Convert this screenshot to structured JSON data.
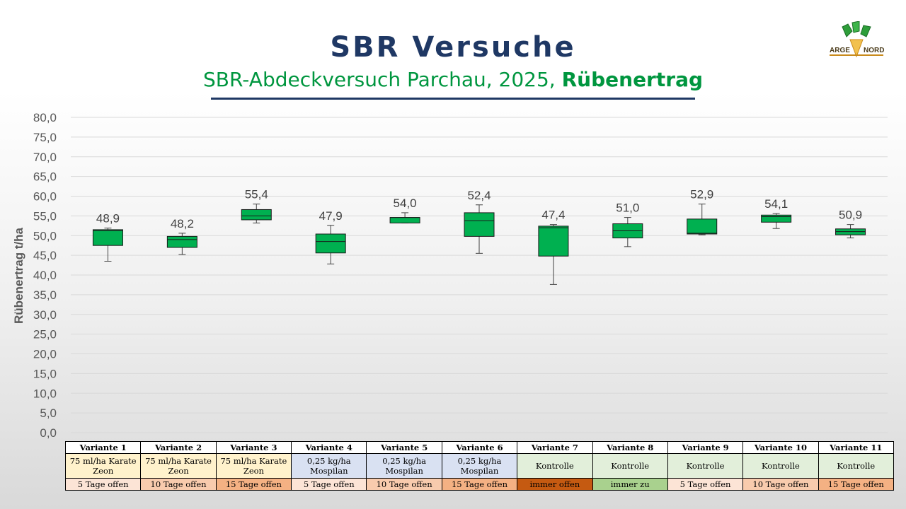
{
  "header": {
    "title": "SBR Versuche",
    "subtitle_main": "SBR-Abdeckversuch Parchau, 2025, ",
    "subtitle_bold": "Rübenertrag"
  },
  "logo": {
    "text_left": "ARGE",
    "text_right": "NORD"
  },
  "chart_data": {
    "type": "boxplot",
    "ylabel": "Rübenertrag t/ha",
    "ylim": [
      0,
      80
    ],
    "yticks": [
      "0,0",
      "5,0",
      "10,0",
      "15,0",
      "20,0",
      "25,0",
      "30,0",
      "35,0",
      "40,0",
      "45,0",
      "50,0",
      "55,0",
      "60,0",
      "65,0",
      "70,0",
      "75,0",
      "80,0"
    ],
    "grid": true,
    "box_color": "#00b050",
    "categories": [
      "Variante 1",
      "Variante 2",
      "Variante 3",
      "Variante 4",
      "Variante 5",
      "Variante 6",
      "Variante 7",
      "Variante 8",
      "Variante 9",
      "Variante 10",
      "Variante 11"
    ],
    "boxes": [
      {
        "min": 43.5,
        "q1": 47.5,
        "median": 51.2,
        "q3": 51.5,
        "max": 51.9,
        "mean_label": "48,9"
      },
      {
        "min": 45.2,
        "q1": 47.0,
        "median": 49.0,
        "q3": 49.8,
        "max": 50.6,
        "mean_label": "48,2"
      },
      {
        "min": 53.2,
        "q1": 54.0,
        "median": 55.0,
        "q3": 56.6,
        "max": 58.0,
        "mean_label": "55,4"
      },
      {
        "min": 42.8,
        "q1": 45.6,
        "median": 48.5,
        "q3": 50.4,
        "max": 52.6,
        "mean_label": "47,9"
      },
      {
        "min": 53.2,
        "q1": 53.2,
        "median": 54.6,
        "q3": 54.6,
        "max": 55.8,
        "mean_label": "54,0"
      },
      {
        "min": 45.5,
        "q1": 49.8,
        "median": 53.8,
        "q3": 55.8,
        "max": 57.8,
        "mean_label": "52,4"
      },
      {
        "min": 37.6,
        "q1": 44.8,
        "median": 52.0,
        "q3": 52.4,
        "max": 52.8,
        "mean_label": "47,4"
      },
      {
        "min": 47.2,
        "q1": 49.4,
        "median": 51.2,
        "q3": 53.0,
        "max": 54.6,
        "mean_label": "51,0"
      },
      {
        "min": 50.2,
        "q1": 50.4,
        "median": 50.6,
        "q3": 54.2,
        "max": 58.0,
        "mean_label": "52,9"
      },
      {
        "min": 51.8,
        "q1": 53.4,
        "median": 54.8,
        "q3": 55.2,
        "max": 55.6,
        "mean_label": "54,1"
      },
      {
        "min": 49.4,
        "q1": 50.2,
        "median": 51.0,
        "q3": 51.7,
        "max": 52.8,
        "mean_label": "50,9"
      }
    ]
  },
  "table": {
    "headers": [
      "Variante 1",
      "Variante 2",
      "Variante 3",
      "Variante 4",
      "Variante 5",
      "Variante 6",
      "Variante 7",
      "Variante 8",
      "Variante 9",
      "Variante 10",
      "Variante 11"
    ],
    "products": [
      {
        "line1": "75 ml/ha Karate",
        "line2": "Zeon",
        "color": "#fff2cc"
      },
      {
        "line1": "75 ml/ha Karate",
        "line2": "Zeon",
        "color": "#fff2cc"
      },
      {
        "line1": "75 ml/ha Karate",
        "line2": "Zeon",
        "color": "#fff2cc"
      },
      {
        "line1": "0,25 kg/ha",
        "line2": "Mospilan",
        "color": "#d9e1f2"
      },
      {
        "line1": "0,25 kg/ha",
        "line2": "Mospilan",
        "color": "#d9e1f2"
      },
      {
        "line1": "0,25 kg/ha",
        "line2": "Mospilan",
        "color": "#d9e1f2"
      },
      {
        "line1": "Kontrolle",
        "line2": "",
        "color": "#e2efda"
      },
      {
        "line1": "Kontrolle",
        "line2": "",
        "color": "#e2efda"
      },
      {
        "line1": "Kontrolle",
        "line2": "",
        "color": "#e2efda"
      },
      {
        "line1": "Kontrolle",
        "line2": "",
        "color": "#e2efda"
      },
      {
        "line1": "Kontrolle",
        "line2": "",
        "color": "#e2efda"
      }
    ],
    "openings": [
      {
        "text": "5 Tage offen",
        "color": "#fce4d6"
      },
      {
        "text": "10 Tage offen",
        "color": "#f8cbad"
      },
      {
        "text": "15 Tage offen",
        "color": "#f4b183"
      },
      {
        "text": "5 Tage offen",
        "color": "#fce4d6"
      },
      {
        "text": "10 Tage offen",
        "color": "#f8cbad"
      },
      {
        "text": "15 Tage offen",
        "color": "#f4b183"
      },
      {
        "text": "immer offen",
        "color": "#c55a11"
      },
      {
        "text": "immer zu",
        "color": "#a9d18e"
      },
      {
        "text": "5 Tage offen",
        "color": "#fce4d6"
      },
      {
        "text": "10 Tage offen",
        "color": "#f8cbad"
      },
      {
        "text": "15 Tage offen",
        "color": "#f4b183"
      }
    ]
  }
}
